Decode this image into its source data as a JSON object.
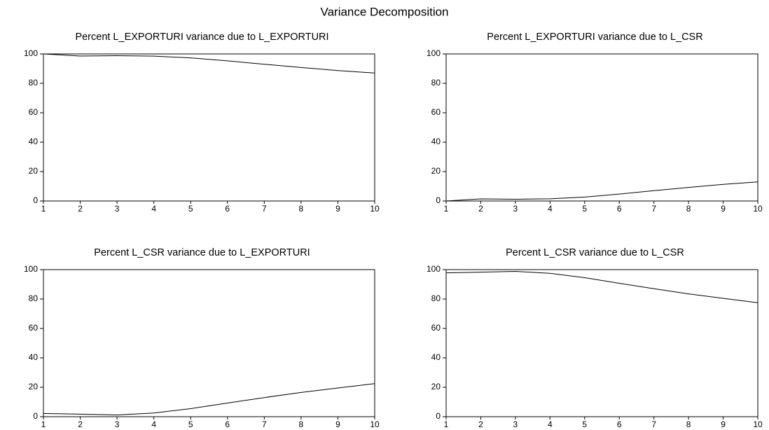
{
  "title": "Variance Decomposition",
  "chart_data": [
    {
      "type": "line",
      "title": "Percent L_EXPORTURI variance due to L_EXPORTURI",
      "x": [
        1,
        2,
        3,
        4,
        5,
        6,
        7,
        8,
        9,
        10
      ],
      "values": [
        100,
        98.6,
        98.8,
        98.5,
        97.3,
        95.3,
        93.0,
        90.8,
        88.7,
        87.0
      ],
      "color": "#000000",
      "xlim": [
        1,
        10
      ],
      "xticks": [
        1,
        2,
        3,
        4,
        5,
        6,
        7,
        8,
        9,
        10
      ],
      "ylim": [
        0,
        100
      ],
      "yticks": [
        0,
        20,
        40,
        60,
        80,
        100
      ]
    },
    {
      "type": "line",
      "title": "Percent L_EXPORTURI variance due to L_CSR",
      "x": [
        1,
        2,
        3,
        4,
        5,
        6,
        7,
        8,
        9,
        10
      ],
      "values": [
        0,
        1.4,
        1.2,
        1.5,
        2.7,
        4.7,
        7.0,
        9.2,
        11.3,
        13.0
      ],
      "color": "#000000",
      "xlim": [
        1,
        10
      ],
      "xticks": [
        1,
        2,
        3,
        4,
        5,
        6,
        7,
        8,
        9,
        10
      ],
      "ylim": [
        0,
        100
      ],
      "yticks": [
        0,
        20,
        40,
        60,
        80,
        100
      ]
    },
    {
      "type": "line",
      "title": "Percent L_CSR variance due to L_EXPORTURI",
      "x": [
        1,
        2,
        3,
        4,
        5,
        6,
        7,
        8,
        9,
        10
      ],
      "values": [
        2.2,
        1.7,
        1.2,
        2.5,
        5.5,
        9.3,
        13.0,
        16.5,
        19.5,
        22.5
      ],
      "color": "#000000",
      "xlim": [
        1,
        10
      ],
      "xticks": [
        1,
        2,
        3,
        4,
        5,
        6,
        7,
        8,
        9,
        10
      ],
      "ylim": [
        0,
        100
      ],
      "yticks": [
        0,
        20,
        40,
        60,
        80,
        100
      ]
    },
    {
      "type": "line",
      "title": "Percent L_CSR variance due to L_CSR",
      "x": [
        1,
        2,
        3,
        4,
        5,
        6,
        7,
        8,
        9,
        10
      ],
      "values": [
        97.8,
        98.3,
        98.8,
        97.5,
        94.5,
        90.7,
        87.0,
        83.5,
        80.5,
        77.5
      ],
      "color": "#000000",
      "xlim": [
        1,
        10
      ],
      "xticks": [
        1,
        2,
        3,
        4,
        5,
        6,
        7,
        8,
        9,
        10
      ],
      "ylim": [
        0,
        100
      ],
      "yticks": [
        0,
        20,
        40,
        60,
        80,
        100
      ]
    }
  ]
}
